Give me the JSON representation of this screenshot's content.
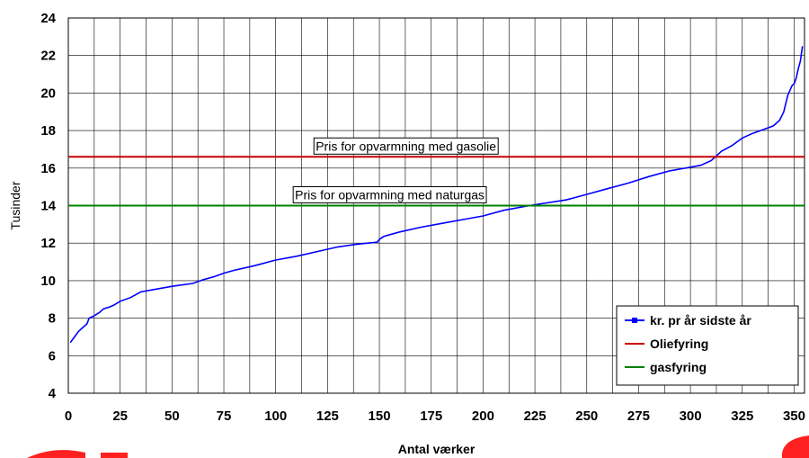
{
  "chart_data": {
    "type": "line",
    "xlabel": "Antal værker",
    "ylabel": "Tusinder",
    "xlim": [
      0,
      355
    ],
    "ylim": [
      4,
      24
    ],
    "x_ticks": [
      0,
      25,
      50,
      75,
      100,
      125,
      150,
      175,
      200,
      225,
      250,
      275,
      300,
      325,
      350
    ],
    "y_ticks": [
      4,
      6,
      8,
      10,
      12,
      14,
      16,
      18,
      20,
      22,
      24
    ],
    "x_grid_step": 12.5,
    "grid": true,
    "legend_position": "bottom-right",
    "series": [
      {
        "name": "kr. pr år sidste år",
        "color": "#0000ff",
        "marker": "square",
        "x": [
          1,
          3,
          5,
          7,
          9,
          10,
          12,
          15,
          17,
          20,
          22,
          25,
          30,
          35,
          40,
          50,
          60,
          65,
          70,
          75,
          80,
          90,
          100,
          110,
          120,
          130,
          140,
          149,
          150,
          152,
          155,
          160,
          170,
          180,
          190,
          200,
          210,
          220,
          225,
          240,
          250,
          260,
          270,
          280,
          290,
          300,
          305,
          310,
          312,
          315,
          320,
          325,
          330,
          335,
          340,
          343,
          345,
          347,
          349,
          350,
          351,
          352,
          353,
          354
        ],
        "y": [
          6.7,
          7.0,
          7.3,
          7.5,
          7.7,
          8.0,
          8.1,
          8.3,
          8.5,
          8.6,
          8.7,
          8.9,
          9.1,
          9.4,
          9.5,
          9.7,
          9.85,
          10.05,
          10.2,
          10.4,
          10.55,
          10.8,
          11.1,
          11.3,
          11.55,
          11.8,
          11.95,
          12.05,
          12.2,
          12.35,
          12.45,
          12.6,
          12.85,
          13.05,
          13.25,
          13.45,
          13.75,
          13.95,
          14.05,
          14.3,
          14.6,
          14.9,
          15.2,
          15.55,
          15.85,
          16.05,
          16.15,
          16.4,
          16.6,
          16.9,
          17.2,
          17.6,
          17.85,
          18.05,
          18.25,
          18.55,
          19.0,
          19.9,
          20.4,
          20.5,
          20.8,
          21.3,
          21.7,
          22.5
        ]
      },
      {
        "name": "Oliefyring",
        "color": "#cc0000",
        "x": [
          0,
          355
        ],
        "y": [
          16.6,
          16.6
        ]
      },
      {
        "name": "gasfyring",
        "color": "#008000",
        "x": [
          0,
          355
        ],
        "y": [
          14.0,
          14.0
        ]
      }
    ],
    "annotations": [
      {
        "text": "Pris for opvarmning med gasolie",
        "x": 118,
        "y": 16.6
      },
      {
        "text": "Pris for opvarmning med naturgas",
        "x": 108,
        "y": 14.0
      }
    ]
  }
}
